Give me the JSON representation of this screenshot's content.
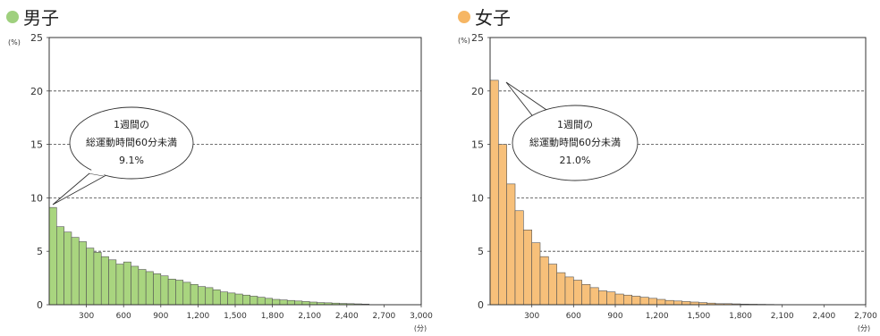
{
  "chart_data": [
    {
      "type": "bar",
      "title": "男子",
      "title_marker_color": "#9fd07e",
      "bar_color": "#a9d57f",
      "y_unit": "(%)",
      "x_unit": "(分)",
      "ylim": [
        0,
        25
      ],
      "y_ticks": [
        0,
        5,
        10,
        15,
        20,
        25
      ],
      "xlim": [
        0,
        3000
      ],
      "x_ticks": [
        300,
        600,
        900,
        1200,
        1500,
        1800,
        2100,
        2400,
        2700,
        3000
      ],
      "x_tick_labels": [
        "300",
        "600",
        "900",
        "1,200",
        "1,500",
        "1,800",
        "2,100",
        "2,400",
        "2,700",
        "3,000"
      ],
      "grid": "horizontal dashed",
      "bin_width": 60,
      "values": [
        9.1,
        7.3,
        6.8,
        6.3,
        5.9,
        5.3,
        4.9,
        4.5,
        4.2,
        3.8,
        4.0,
        3.6,
        3.3,
        3.1,
        2.9,
        2.7,
        2.4,
        2.3,
        2.1,
        1.9,
        1.7,
        1.6,
        1.4,
        1.2,
        1.1,
        1.0,
        0.9,
        0.8,
        0.7,
        0.6,
        0.5,
        0.45,
        0.4,
        0.35,
        0.3,
        0.25,
        0.2,
        0.18,
        0.15,
        0.12,
        0.1,
        0.08,
        0.06
      ],
      "annotation": {
        "lines": [
          "1週間の",
          "総運動時間60分未満",
          "9.1%"
        ]
      }
    },
    {
      "type": "bar",
      "title": "女子",
      "title_marker_color": "#f6b664",
      "bar_color": "#f7c07a",
      "y_unit": "(%)",
      "x_unit": "(分)",
      "ylim": [
        0,
        25
      ],
      "y_ticks": [
        0,
        5,
        10,
        15,
        20,
        25
      ],
      "xlim": [
        0,
        2700
      ],
      "x_ticks": [
        300,
        600,
        900,
        1200,
        1500,
        1800,
        2100,
        2400,
        2700
      ],
      "x_tick_labels": [
        "300",
        "600",
        "900",
        "1,200",
        "1,500",
        "1,800",
        "2,100",
        "2,400",
        "2,700"
      ],
      "grid": "horizontal dashed",
      "bin_width": 60,
      "values": [
        21.0,
        15.0,
        11.3,
        8.8,
        7.0,
        5.8,
        4.5,
        3.8,
        3.0,
        2.6,
        2.3,
        1.9,
        1.6,
        1.3,
        1.2,
        1.0,
        0.9,
        0.8,
        0.7,
        0.6,
        0.5,
        0.4,
        0.35,
        0.3,
        0.25,
        0.2,
        0.15,
        0.1,
        0.1,
        0.08,
        0.06,
        0.05,
        0.04,
        0.03,
        0.02
      ],
      "annotation": {
        "lines": [
          "1週間の",
          "総運動時間60分未満",
          "21.0%"
        ]
      }
    }
  ]
}
